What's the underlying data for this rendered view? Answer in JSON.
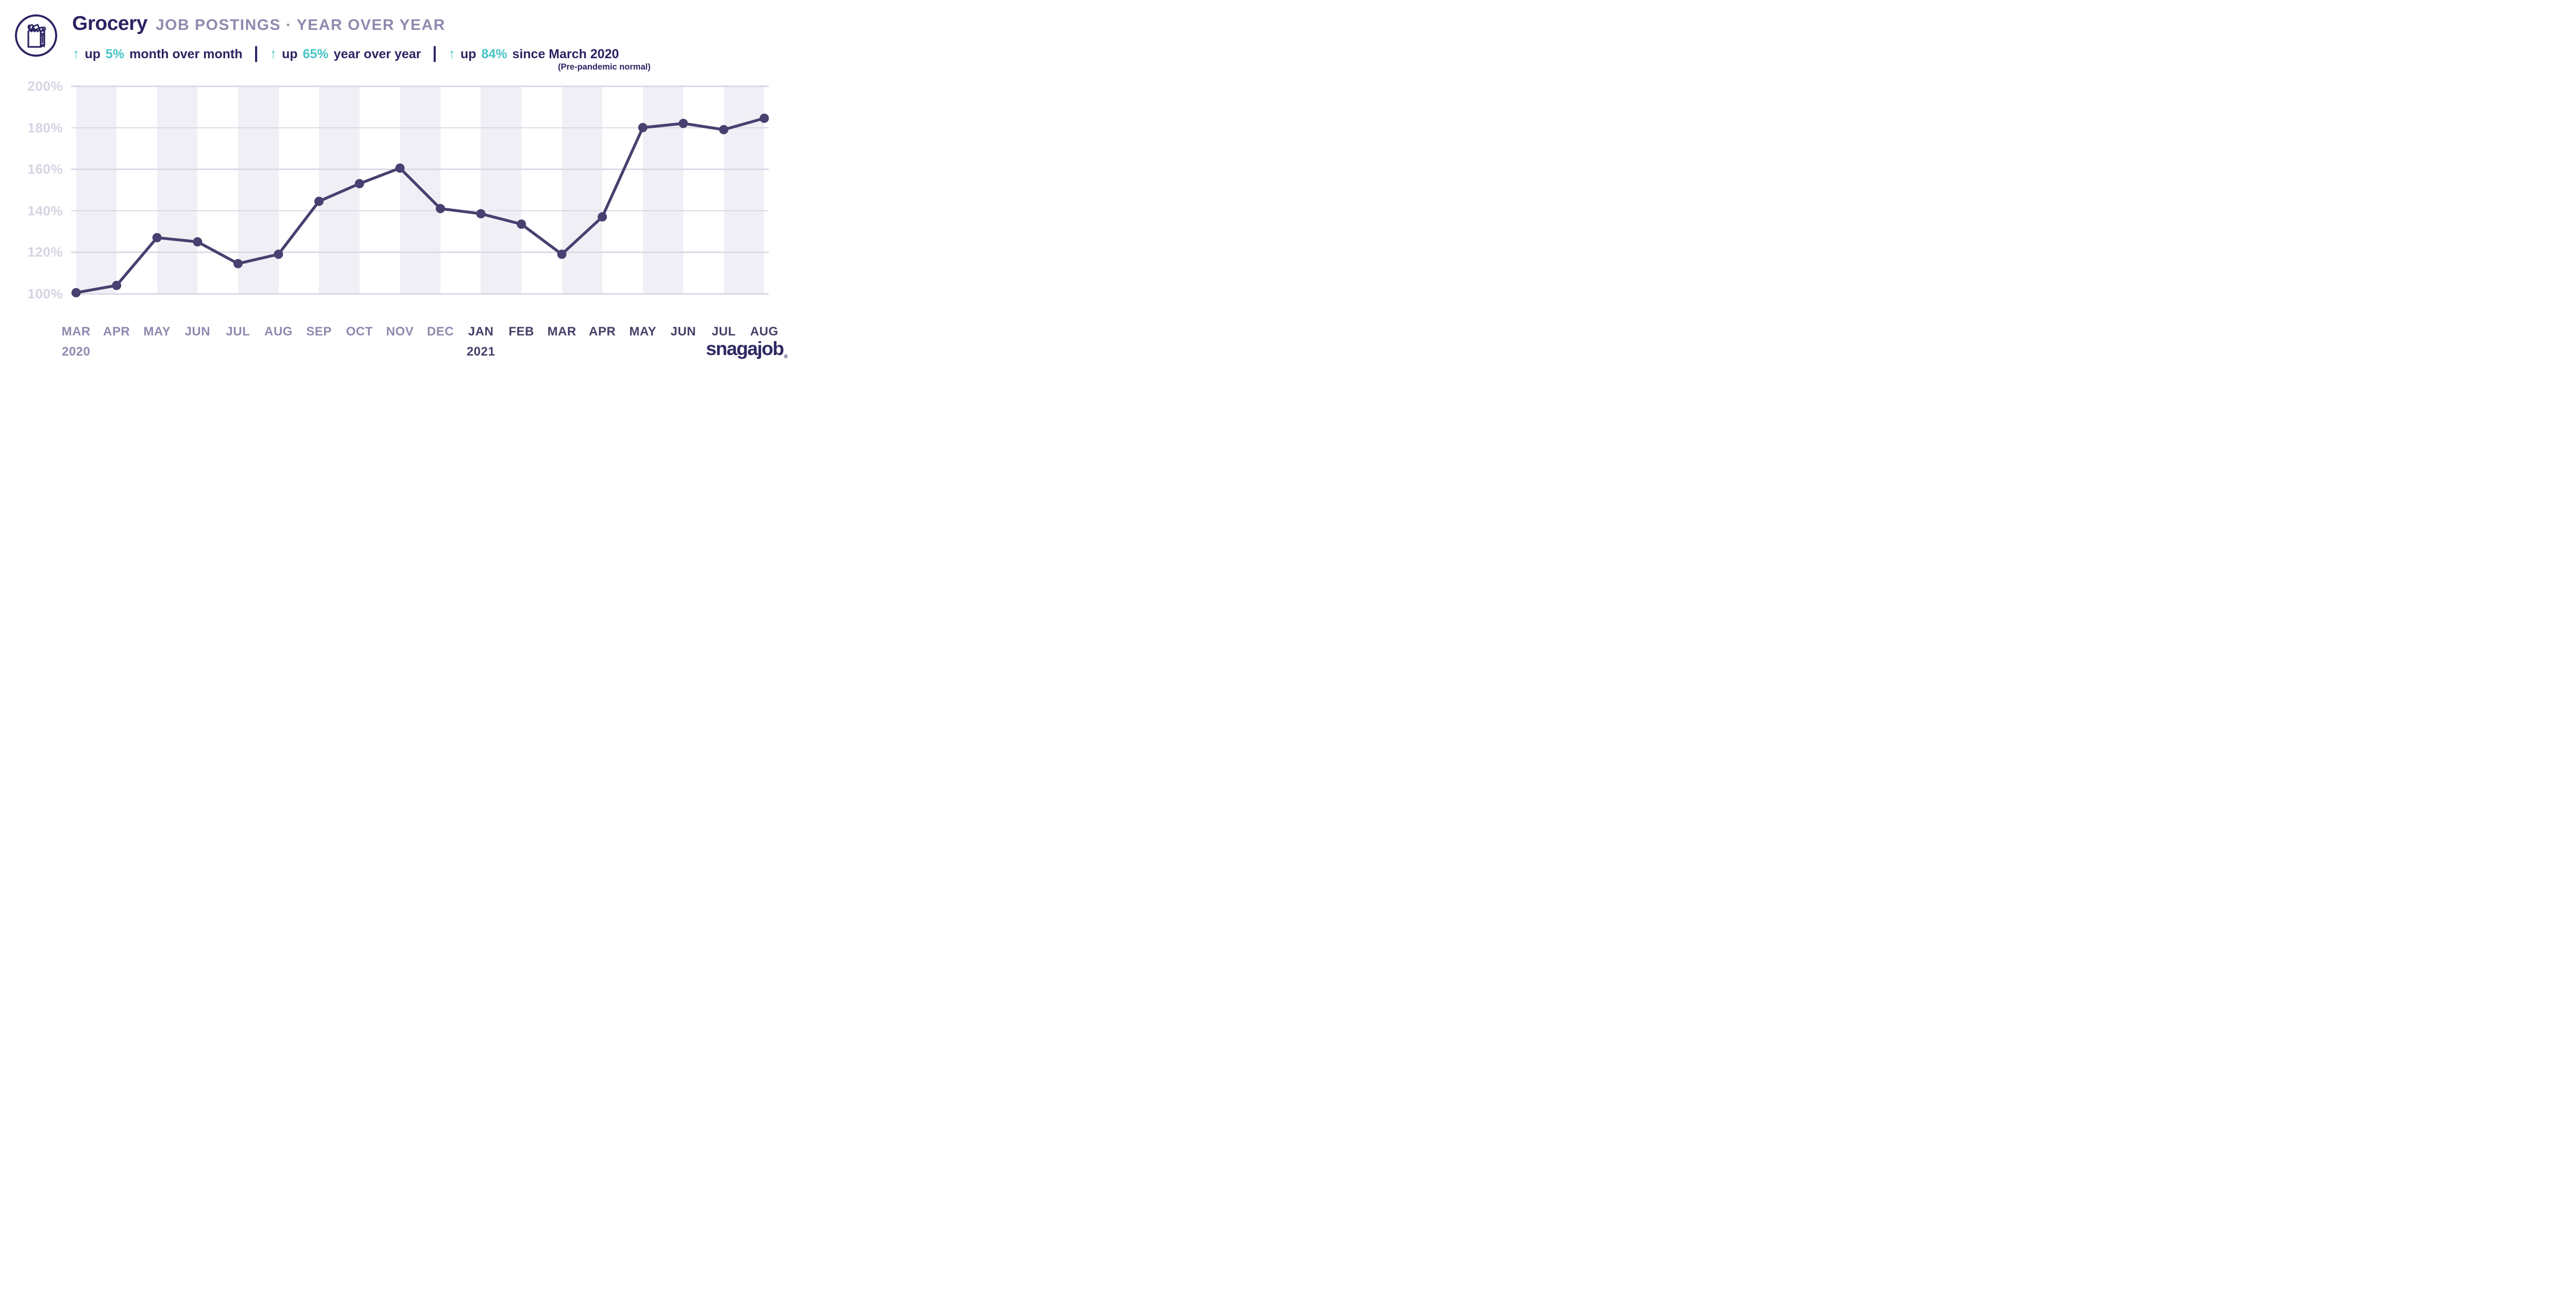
{
  "header": {
    "icon": "grocery-bag-icon",
    "title": "Grocery",
    "subtitle": "JOB POSTINGS · YEAR OVER YEAR",
    "stats": [
      {
        "arrow": "↑",
        "prefix": "up",
        "value": "5%",
        "suffix": "month over month"
      },
      {
        "arrow": "↑",
        "prefix": "up",
        "value": "65%",
        "suffix": "year over year"
      },
      {
        "arrow": "↑",
        "prefix": "up",
        "value": "84%",
        "suffix": "since March 2020"
      }
    ],
    "divider": "|",
    "note": "(Pre-pandemic normal)"
  },
  "chart_data": {
    "type": "line",
    "title": "Grocery job postings, year over year",
    "x_labels": [
      "MAR",
      "APR",
      "MAY",
      "JUN",
      "JUL",
      "AUG",
      "SEP",
      "OCT",
      "NOV",
      "DEC",
      "JAN",
      "FEB",
      "MAR",
      "APR",
      "MAY",
      "JUN",
      "JUL",
      "AUG"
    ],
    "year_markers": [
      {
        "index": 0,
        "label": "2020"
      },
      {
        "index": 10,
        "label": "2021"
      }
    ],
    "values": [
      100.5,
      104,
      127,
      125,
      114.5,
      119,
      144.5,
      153,
      160.5,
      141,
      138.5,
      133.5,
      119,
      137,
      180,
      182,
      179,
      184.5
    ],
    "unit": "%",
    "y_ticks": [
      {
        "value": 200,
        "label": "200%"
      },
      {
        "value": 180,
        "label": "180%"
      },
      {
        "value": 160,
        "label": "160%"
      },
      {
        "value": 140,
        "label": "140%"
      },
      {
        "value": 120,
        "label": "120%"
      },
      {
        "value": 100,
        "label": "100%"
      }
    ],
    "ylim": [
      100,
      200
    ],
    "grid": "horizontal",
    "legend": "none",
    "band_style": "alternating vertical bands between month ticks, shaded starting at MAR 2020"
  },
  "footer": {
    "logo": "snagajob",
    "registered": "®"
  },
  "colors": {
    "navy": "#2b2462",
    "subtitle_gray": "#8f89ae",
    "teal": "#46c5c6",
    "line": "#474070",
    "marker": "#474070",
    "band": "#f0eff5",
    "gridline": "#dcd9e6",
    "y_tick_label": "#d6d3e2",
    "x_label_2020": "#8f89ae",
    "x_label_2021": "#454068",
    "logo": "#2e2963",
    "background": "#ffffff"
  }
}
